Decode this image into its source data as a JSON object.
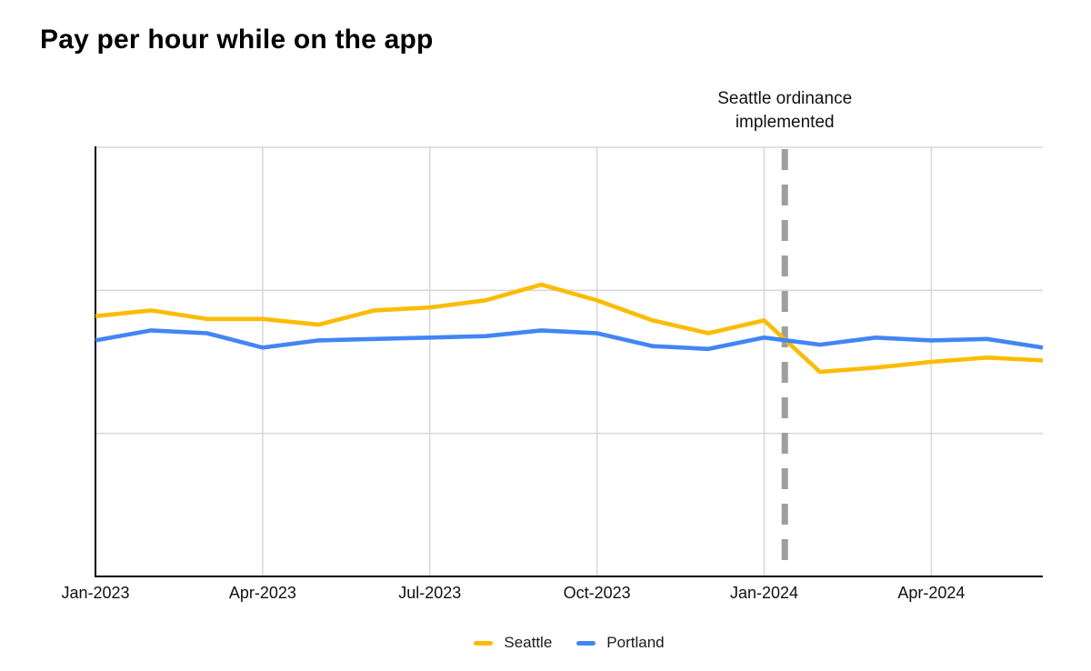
{
  "page": {
    "background": "#ffffff"
  },
  "chart_data": {
    "type": "line",
    "title": "Pay per hour while on the app",
    "x": [
      "Jan-2023",
      "Feb-2023",
      "Mar-2023",
      "Apr-2023",
      "May-2023",
      "Jun-2023",
      "Jul-2023",
      "Aug-2023",
      "Sep-2023",
      "Oct-2023",
      "Nov-2023",
      "Dec-2023",
      "Jan-2024",
      "Feb-2024",
      "Mar-2024",
      "Apr-2024",
      "May-2024",
      "Jun-2024"
    ],
    "x_tick_labels": [
      "Jan-2023",
      "Apr-2023",
      "Jul-2023",
      "Oct-2023",
      "Jan-2024",
      "Apr-2024"
    ],
    "x_tick_every": 3,
    "xlabel": "",
    "ylabel": "",
    "y_axis_labels_visible": false,
    "ylim": [
      0,
      3
    ],
    "y_gridlines": [
      1,
      2
    ],
    "grid": true,
    "legend_position": "bottom-center",
    "gridline_color": "#d9d9d9",
    "axis_color": "#000000",
    "series": [
      {
        "name": "Seattle",
        "color": "#FBBC04",
        "values": [
          1.82,
          1.86,
          1.8,
          1.8,
          1.76,
          1.86,
          1.88,
          1.93,
          2.04,
          1.93,
          1.79,
          1.7,
          1.79,
          1.43,
          1.46,
          1.5,
          1.53,
          1.51
        ]
      },
      {
        "name": "Portland",
        "color": "#4285F4",
        "values": [
          1.65,
          1.72,
          1.7,
          1.6,
          1.65,
          1.66,
          1.67,
          1.68,
          1.72,
          1.7,
          1.61,
          1.59,
          1.67,
          1.62,
          1.67,
          1.65,
          1.66,
          1.6
        ]
      }
    ],
    "annotation": {
      "text_lines": [
        "Seattle ordinance",
        "implemented"
      ],
      "x_index": 12.37,
      "style": "dashed-vertical-line",
      "color": "#9e9e9e"
    }
  }
}
